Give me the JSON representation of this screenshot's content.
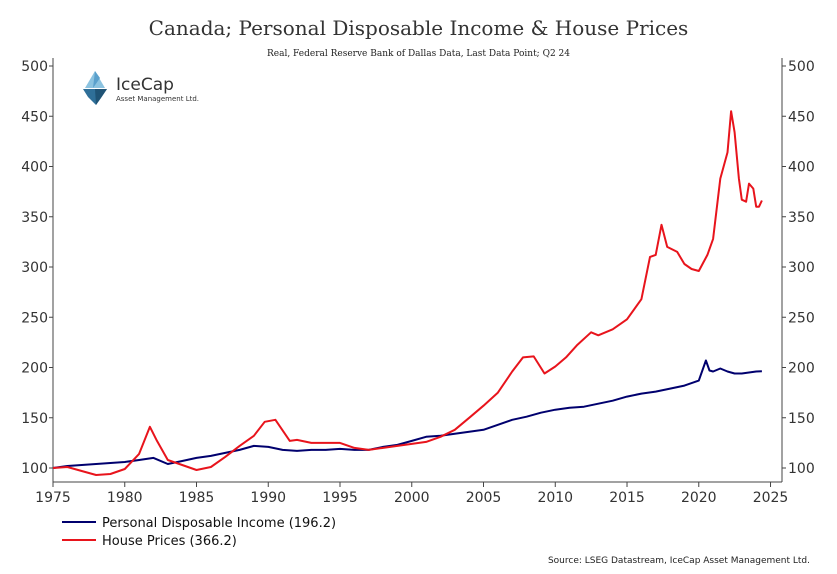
{
  "chart_data": {
    "type": "line",
    "title": "Canada; Personal Disposable Income & House Prices",
    "subtitle": "Real, Federal Reserve Bank of Dallas Data, Last Data Point; Q2 24",
    "ylim": [
      85,
      500
    ],
    "yticks": [
      100,
      150,
      200,
      250,
      300,
      350,
      400,
      450,
      500
    ],
    "xlim": [
      1975,
      2025.8
    ],
    "xticks": [
      1975,
      1980,
      1985,
      1990,
      1995,
      2000,
      2005,
      2010,
      2015,
      2020,
      2025
    ],
    "grid": false,
    "legend_position": "bottom-left",
    "series": [
      {
        "name": "Personal Disposable Income (196.2)",
        "color": "#00006e",
        "points": [
          [
            1975,
            100
          ],
          [
            1976,
            102
          ],
          [
            1977,
            103
          ],
          [
            1978,
            104
          ],
          [
            1979,
            105
          ],
          [
            1980,
            106
          ],
          [
            1981,
            108
          ],
          [
            1982,
            110
          ],
          [
            1983,
            104
          ],
          [
            1984,
            107
          ],
          [
            1985,
            110
          ],
          [
            1986,
            112
          ],
          [
            1987,
            115
          ],
          [
            1988,
            118
          ],
          [
            1989,
            122
          ],
          [
            1990,
            121
          ],
          [
            1991,
            118
          ],
          [
            1992,
            117
          ],
          [
            1993,
            118
          ],
          [
            1994,
            118
          ],
          [
            1995,
            119
          ],
          [
            1996,
            118
          ],
          [
            1997,
            118
          ],
          [
            1998,
            121
          ],
          [
            1999,
            123
          ],
          [
            2000,
            127
          ],
          [
            2001,
            131
          ],
          [
            2002,
            132
          ],
          [
            2003,
            134
          ],
          [
            2004,
            136
          ],
          [
            2005,
            138
          ],
          [
            2006,
            143
          ],
          [
            2007,
            148
          ],
          [
            2008,
            151
          ],
          [
            2009,
            155
          ],
          [
            2010,
            158
          ],
          [
            2011,
            160
          ],
          [
            2012,
            161
          ],
          [
            2013,
            164
          ],
          [
            2014,
            167
          ],
          [
            2015,
            171
          ],
          [
            2016,
            174
          ],
          [
            2017,
            176
          ],
          [
            2018,
            179
          ],
          [
            2019,
            182
          ],
          [
            2020,
            187
          ],
          [
            2020.5,
            207
          ],
          [
            2020.75,
            197
          ],
          [
            2021,
            196
          ],
          [
            2021.5,
            199
          ],
          [
            2022,
            196
          ],
          [
            2022.5,
            194
          ],
          [
            2023,
            194
          ],
          [
            2023.5,
            195
          ],
          [
            2024,
            196
          ],
          [
            2024.4,
            196.2
          ]
        ]
      },
      {
        "name": "House Prices (366.2)",
        "color": "#e8141c",
        "points": [
          [
            1975,
            100
          ],
          [
            1976,
            101
          ],
          [
            1977,
            97
          ],
          [
            1978,
            93
          ],
          [
            1979,
            94
          ],
          [
            1980,
            99
          ],
          [
            1981,
            114
          ],
          [
            1981.75,
            141
          ],
          [
            1982.25,
            127
          ],
          [
            1983,
            108
          ],
          [
            1984,
            103
          ],
          [
            1985,
            98
          ],
          [
            1986,
            101
          ],
          [
            1987,
            111
          ],
          [
            1988,
            122
          ],
          [
            1989,
            132
          ],
          [
            1989.75,
            146
          ],
          [
            1990.5,
            148
          ],
          [
            1991.5,
            127
          ],
          [
            1992,
            128
          ],
          [
            1993,
            125
          ],
          [
            1994,
            125
          ],
          [
            1995,
            125
          ],
          [
            1996,
            120
          ],
          [
            1997,
            118
          ],
          [
            1998,
            120
          ],
          [
            1999,
            122
          ],
          [
            2000,
            124
          ],
          [
            2001,
            126
          ],
          [
            2002,
            131
          ],
          [
            2003,
            138
          ],
          [
            2004,
            150
          ],
          [
            2005,
            162
          ],
          [
            2006,
            175
          ],
          [
            2007,
            196
          ],
          [
            2007.75,
            210
          ],
          [
            2008.5,
            211
          ],
          [
            2009.25,
            194
          ],
          [
            2010,
            201
          ],
          [
            2010.75,
            210
          ],
          [
            2011.5,
            222
          ],
          [
            2012.5,
            235
          ],
          [
            2013,
            232
          ],
          [
            2014,
            238
          ],
          [
            2015,
            248
          ],
          [
            2016,
            268
          ],
          [
            2016.6,
            310
          ],
          [
            2017,
            312
          ],
          [
            2017.4,
            342
          ],
          [
            2017.8,
            320
          ],
          [
            2018.5,
            315
          ],
          [
            2019,
            303
          ],
          [
            2019.5,
            298
          ],
          [
            2020,
            296
          ],
          [
            2020.6,
            312
          ],
          [
            2021,
            328
          ],
          [
            2021.5,
            388
          ],
          [
            2022,
            414
          ],
          [
            2022.25,
            455
          ],
          [
            2022.5,
            434
          ],
          [
            2022.8,
            388
          ],
          [
            2023,
            367
          ],
          [
            2023.3,
            365
          ],
          [
            2023.5,
            383
          ],
          [
            2023.8,
            378
          ],
          [
            2024,
            360
          ],
          [
            2024.2,
            360
          ],
          [
            2024.4,
            366.2
          ]
        ]
      }
    ]
  },
  "logo": {
    "name": "IceCap",
    "tagline": "Asset Management Ltd."
  },
  "source": "Source: LSEG Datastream, IceCap Asset Management Ltd."
}
